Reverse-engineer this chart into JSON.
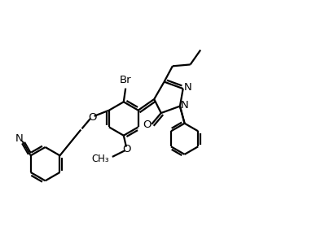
{
  "background": "#ffffff",
  "line_color": "#000000",
  "line_width": 1.6,
  "font_size": 9.5,
  "fig_width": 3.99,
  "fig_height": 2.94,
  "dpi": 100,
  "xlim": [
    0,
    10
  ],
  "ylim": [
    0,
    7.35
  ],
  "N_color": "#000000",
  "O_color": "#000000",
  "Br_color": "#000000",
  "label_N": "N",
  "label_O": "O",
  "label_Br": "Br",
  "label_OMe": "O",
  "label_CN": "N"
}
